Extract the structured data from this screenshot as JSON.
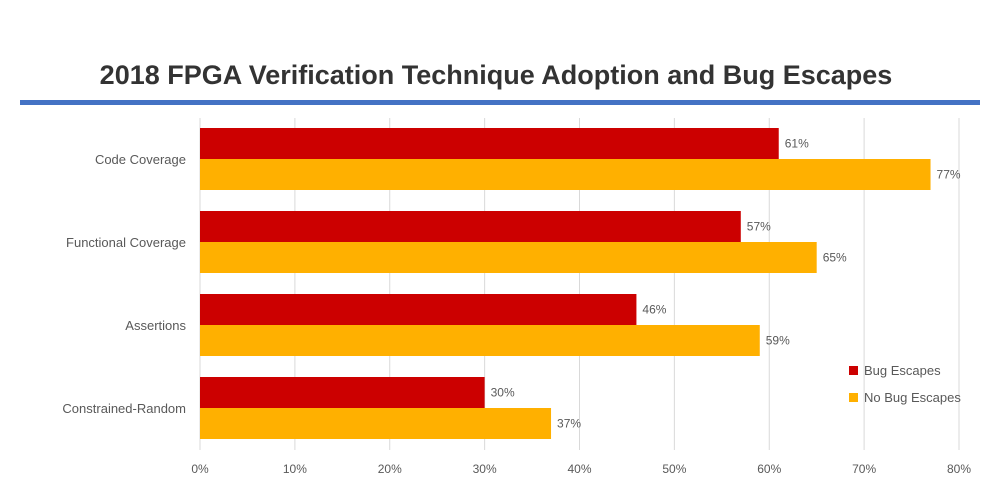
{
  "chart_data": {
    "type": "bar",
    "orientation": "horizontal",
    "title": "2018 FPGA Verification Technique Adoption and Bug Escapes",
    "categories": [
      "Code Coverage",
      "Functional  Coverage",
      "Assertions",
      "Constrained-Random"
    ],
    "series": [
      {
        "name": "Bug Escapes",
        "color": "#cc0000",
        "values": [
          61,
          57,
          46,
          30
        ],
        "labels": [
          "61%",
          "57%",
          "46%",
          "30%"
        ]
      },
      {
        "name": "No Bug Escapes",
        "color": "#ffb000",
        "values": [
          77,
          65,
          59,
          37
        ],
        "labels": [
          "77%",
          "65%",
          "59%",
          "37%"
        ]
      }
    ],
    "xlim": [
      0,
      80
    ],
    "xticks": [
      0,
      10,
      20,
      30,
      40,
      50,
      60,
      70,
      80
    ],
    "xtick_labels": [
      "0%",
      "10%",
      "20%",
      "30%",
      "40%",
      "50%",
      "60%",
      "70%",
      "80%"
    ],
    "grid": "vertical",
    "legend_position": "right",
    "title_rule_color": "#4472c4"
  }
}
